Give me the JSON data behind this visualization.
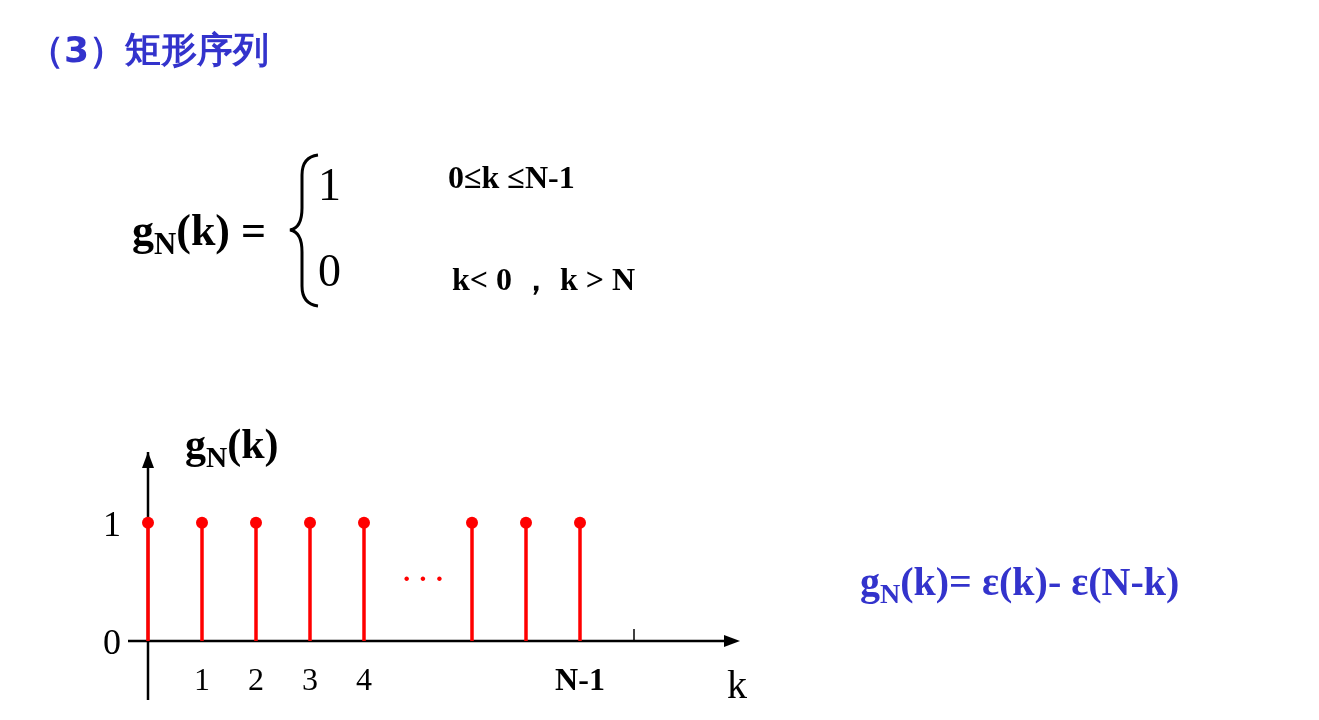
{
  "chart_data": {
    "type": "lollipop",
    "title": "（3）矩形序列",
    "xlabel": "k",
    "ylabel": "g$_{N}$(k)",
    "categories": [
      null,
      "1",
      "2",
      "3",
      "4",
      null,
      null,
      null,
      "N-1",
      null
    ],
    "values": [
      1,
      1,
      1,
      1,
      1,
      null,
      1,
      1,
      1,
      null
    ],
    "color": "#ff0000",
    "marker": "circle",
    "ylim": [
      -0.5,
      1.6
    ],
    "yticks": [
      0,
      1
    ],
    "annotations": [
      "g$_{N}$(k) =",
      "1",
      "0≤k ≤N-1",
      "0",
      "k< 0 ，  k > N",
      "· · ·",
      "g$_{N}$(k)= ε(k)- ε(N-k)"
    ]
  }
}
